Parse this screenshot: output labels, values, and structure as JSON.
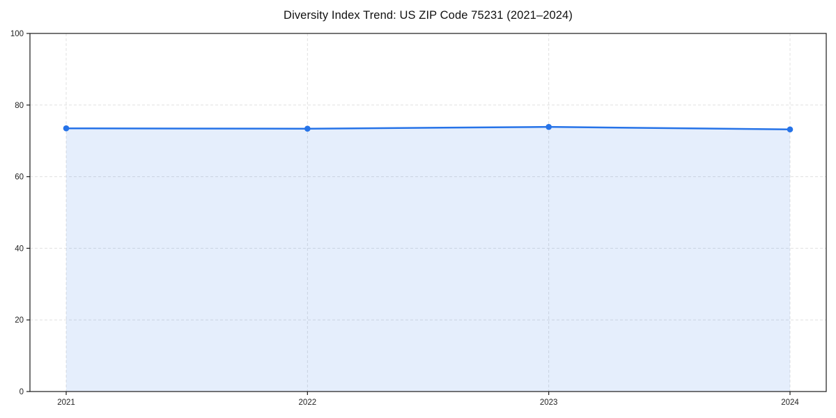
{
  "chart_data": {
    "type": "area",
    "title": "Diversity Index Trend: US ZIP Code 75231 (2021–2024)",
    "categories": [
      "2021",
      "2022",
      "2023",
      "2024"
    ],
    "x": [
      2021,
      2022,
      2023,
      2024
    ],
    "series": [
      {
        "name": "Diversity Index",
        "values": [
          73.5,
          73.4,
          73.9,
          73.2
        ]
      }
    ],
    "xlabel": "",
    "ylabel": "",
    "ylim": [
      0,
      100
    ],
    "yticks": [
      0,
      20,
      40,
      60,
      80,
      100
    ],
    "grid": true,
    "grid_style": "dashed",
    "legend": false,
    "line_color": "#2673e8",
    "marker_color": "#2673e8",
    "fill_color": "#2673e8",
    "fill_opacity": 0.12,
    "spine_color": "#1a1a1a",
    "grid_color": "#e0e0e0",
    "tick_label_color": "#222222"
  }
}
